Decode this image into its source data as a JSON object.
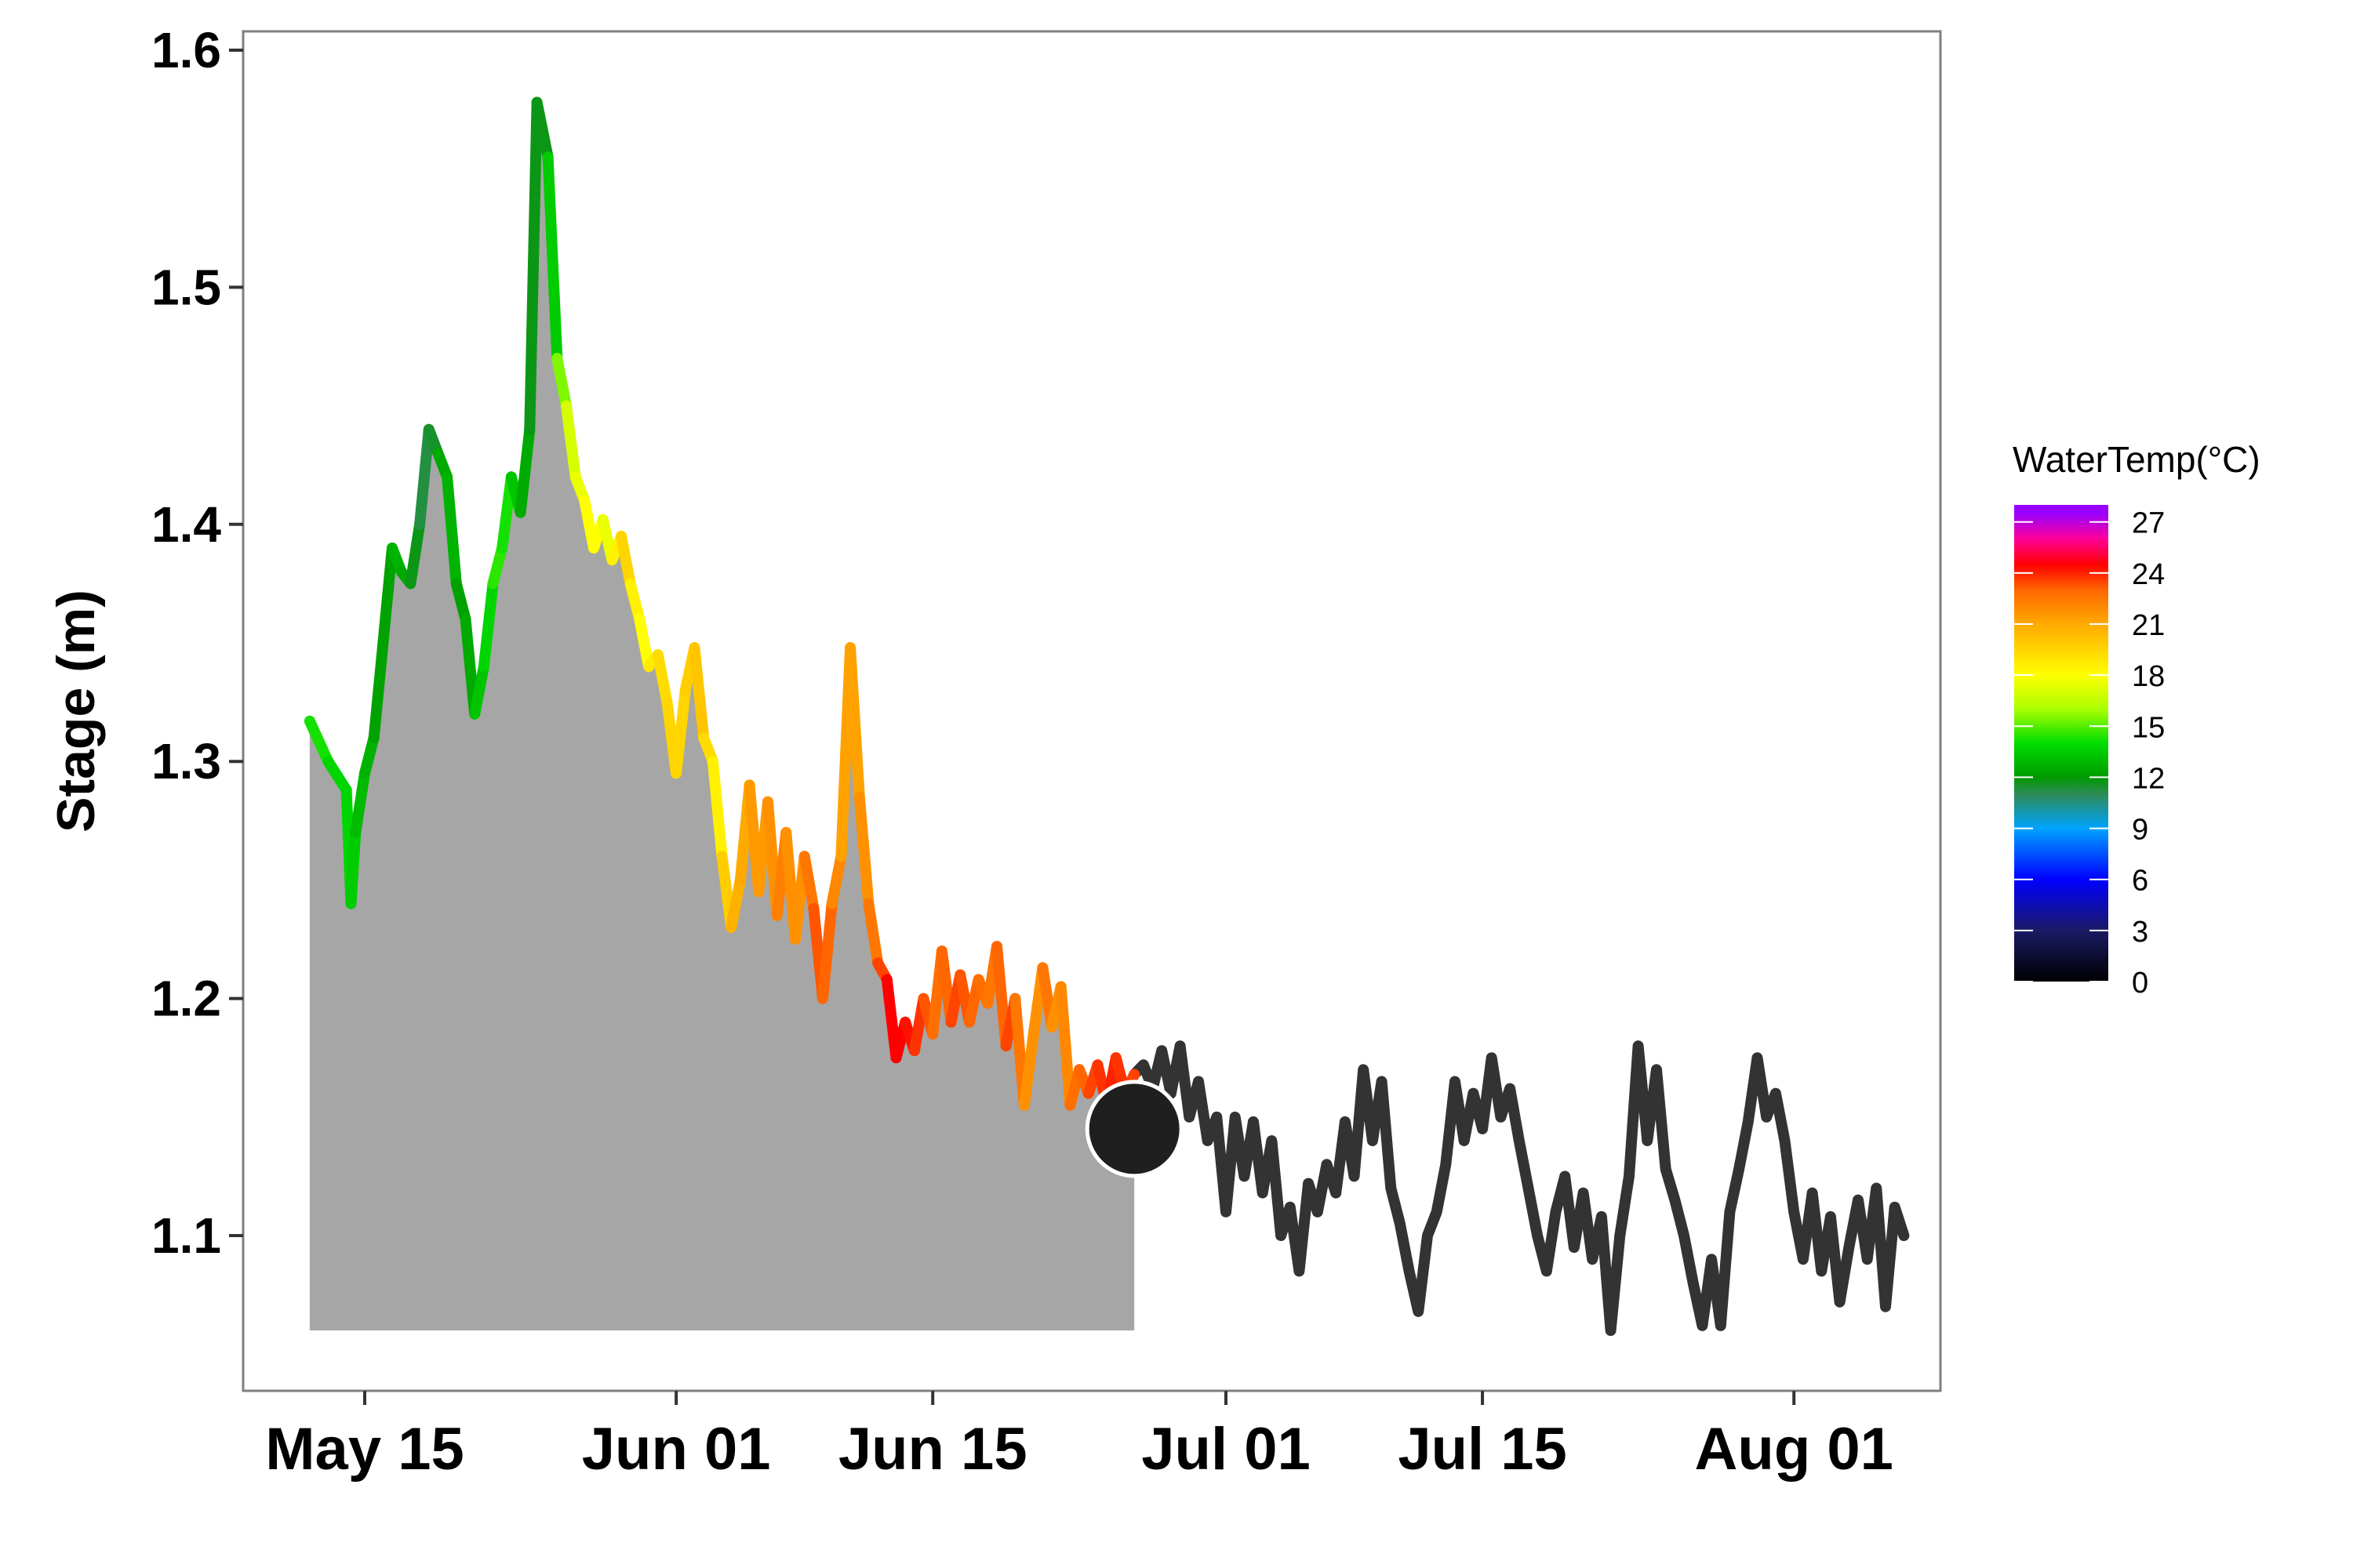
{
  "colors": {
    "area_fill": "#a6a6a6",
    "series_dark": "#333333",
    "marker_fill": "#1f1f1f",
    "marker_stroke": "#ffffff",
    "panel_border": "#7f7f7f",
    "gradient_stops": [
      {
        "t": 0,
        "color": "#000000"
      },
      {
        "t": 3,
        "color": "#1a1a66"
      },
      {
        "t": 6,
        "color": "#0000ff"
      },
      {
        "t": 9,
        "color": "#00a3ff"
      },
      {
        "t": 11,
        "color": "#2e8b57"
      },
      {
        "t": 12,
        "color": "#009900"
      },
      {
        "t": 14,
        "color": "#00dd00"
      },
      {
        "t": 16,
        "color": "#aaff00"
      },
      {
        "t": 18,
        "color": "#ffff00"
      },
      {
        "t": 21,
        "color": "#ffaa00"
      },
      {
        "t": 23,
        "color": "#ff6600"
      },
      {
        "t": 24.5,
        "color": "#ff0000"
      },
      {
        "t": 26,
        "color": "#ff0099"
      },
      {
        "t": 27.5,
        "color": "#9900ff"
      }
    ]
  },
  "chart_data": {
    "type": "line",
    "title": "",
    "xlabel": "",
    "ylabel": "Stage (m)",
    "ylim": [
      1.035,
      1.6
    ],
    "xlim": [
      "2015-05-05",
      "2015-08-07"
    ],
    "yticks": [
      1.1,
      1.2,
      1.3,
      1.4,
      1.5,
      1.6
    ],
    "ytick_labels": [
      "1.1",
      "1.2",
      "1.3",
      "1.4",
      "1.5",
      "1.6"
    ],
    "xticks": [
      "2015-05-15",
      "2015-06-01",
      "2015-06-15",
      "2015-07-01",
      "2015-07-15",
      "2015-08-01"
    ],
    "xtick_labels": [
      "May 15",
      "Jun 01",
      "Jun 15",
      "Jul 01",
      "Jul 15",
      "Aug 01"
    ],
    "grid": false,
    "legend": {
      "title": "WaterTemp(°C)",
      "placement": "right",
      "range": [
        0,
        28
      ],
      "ticks": [
        0,
        3,
        6,
        9,
        12,
        15,
        18,
        21,
        24,
        27
      ],
      "tick_labels": [
        "0",
        "3",
        "6",
        "9",
        "12",
        "15",
        "18",
        "21",
        "24",
        "27"
      ]
    },
    "shaded_area": {
      "x_start": "2015-05-12",
      "x_end": "2015-06-26",
      "y_bottom": 1.06
    },
    "marker": {
      "x": "2015-06-26",
      "y": 1.145
    },
    "series": [
      {
        "kind": "temperature_colored",
        "points": [
          [
            "2015-05-12",
            1.317,
            14.5
          ],
          [
            "2015-05-13",
            1.3,
            14.0
          ],
          [
            "2015-05-14",
            1.288,
            13.5
          ],
          [
            "2015-05-14.25",
            1.24,
            14.0
          ],
          [
            "2015-05-14.5",
            1.27,
            13.0
          ],
          [
            "2015-05-15",
            1.295,
            13.0
          ],
          [
            "2015-05-15.5",
            1.31,
            12.5
          ],
          [
            "2015-05-16",
            1.35,
            12.0
          ],
          [
            "2015-05-16.5",
            1.39,
            12.5
          ],
          [
            "2015-05-17",
            1.38,
            13.0
          ],
          [
            "2015-05-17.5",
            1.375,
            12.0
          ],
          [
            "2015-05-18",
            1.4,
            11.5
          ],
          [
            "2015-05-18.5",
            1.44,
            11.0
          ],
          [
            "2015-05-19",
            1.43,
            12.0
          ],
          [
            "2015-05-19.5",
            1.42,
            13.0
          ],
          [
            "2015-05-20",
            1.375,
            12.5
          ],
          [
            "2015-05-20.5",
            1.36,
            12.0
          ],
          [
            "2015-05-21",
            1.32,
            13.0
          ],
          [
            "2015-05-21.5",
            1.34,
            13.5
          ],
          [
            "2015-05-22",
            1.375,
            14.0
          ],
          [
            "2015-05-22.5",
            1.39,
            15.0
          ],
          [
            "2015-05-23",
            1.42,
            13.5
          ],
          [
            "2015-05-23.5",
            1.405,
            13.0
          ],
          [
            "2015-05-24",
            1.44,
            12.0
          ],
          [
            "2015-05-24.4",
            1.578,
            11.5
          ],
          [
            "2015-05-25",
            1.555,
            12.0
          ],
          [
            "2015-05-25.5",
            1.47,
            15.0
          ],
          [
            "2015-05-26",
            1.45,
            16.0
          ],
          [
            "2015-05-26.5",
            1.42,
            18.0
          ],
          [
            "2015-05-27",
            1.41,
            17.0
          ],
          [
            "2015-05-27.5",
            1.39,
            19.0
          ],
          [
            "2015-05-28",
            1.402,
            17.0
          ],
          [
            "2015-05-28.5",
            1.385,
            18.0
          ],
          [
            "2015-05-29",
            1.395,
            19.0
          ],
          [
            "2015-05-29.5",
            1.375,
            20.0
          ],
          [
            "2015-05-30",
            1.36,
            17.0
          ],
          [
            "2015-05-30.5",
            1.34,
            19.0
          ],
          [
            "2015-05-31",
            1.345,
            18.5
          ],
          [
            "2015-05-31.5",
            1.325,
            20.0
          ],
          [
            "2015-06-01",
            1.295,
            19.0
          ],
          [
            "2015-06-01.5",
            1.33,
            20.0
          ],
          [
            "2015-06-02",
            1.348,
            19.5
          ],
          [
            "2015-06-02.5",
            1.31,
            20.5
          ],
          [
            "2015-06-03",
            1.3,
            18.0
          ],
          [
            "2015-06-03.5",
            1.26,
            19.0
          ],
          [
            "2015-06-04",
            1.23,
            20.5
          ],
          [
            "2015-06-04.5",
            1.25,
            21.0
          ],
          [
            "2015-06-05",
            1.29,
            21.0
          ],
          [
            "2015-06-05.5",
            1.245,
            22.0
          ],
          [
            "2015-06-06",
            1.283,
            21.0
          ],
          [
            "2015-06-06.5",
            1.235,
            22.5
          ],
          [
            "2015-06-07",
            1.27,
            22.0
          ],
          [
            "2015-06-07.5",
            1.225,
            21.5
          ],
          [
            "2015-06-08",
            1.26,
            22.0
          ],
          [
            "2015-06-08.5",
            1.238,
            23.0
          ],
          [
            "2015-06-09",
            1.2,
            23.5
          ],
          [
            "2015-06-09.5",
            1.24,
            22.5
          ],
          [
            "2015-06-10",
            1.26,
            21.5
          ],
          [
            "2015-06-10.5",
            1.348,
            21.0
          ],
          [
            "2015-06-11",
            1.285,
            21.5
          ],
          [
            "2015-06-11.5",
            1.24,
            22.0
          ],
          [
            "2015-06-12",
            1.215,
            23.0
          ],
          [
            "2015-06-12.5",
            1.208,
            24.0
          ],
          [
            "2015-06-13",
            1.175,
            25.0
          ],
          [
            "2015-06-13.5",
            1.19,
            24.0
          ],
          [
            "2015-06-14",
            1.178,
            24.5
          ],
          [
            "2015-06-14.5",
            1.2,
            23.0
          ],
          [
            "2015-06-15",
            1.185,
            23.5
          ],
          [
            "2015-06-15.5",
            1.22,
            22.0
          ],
          [
            "2015-06-16",
            1.19,
            24.0
          ],
          [
            "2015-06-16.5",
            1.21,
            23.0
          ],
          [
            "2015-06-17",
            1.19,
            23.5
          ],
          [
            "2015-06-17.5",
            1.208,
            22.5
          ],
          [
            "2015-06-18",
            1.198,
            23.0
          ],
          [
            "2015-06-18.5",
            1.222,
            22.0
          ],
          [
            "2015-06-19",
            1.18,
            24.0
          ],
          [
            "2015-06-19.5",
            1.2,
            23.0
          ],
          [
            "2015-06-20",
            1.155,
            22.0
          ],
          [
            "2015-06-20.5",
            1.185,
            21.5
          ],
          [
            "2015-06-21",
            1.213,
            22.0
          ],
          [
            "2015-06-21.5",
            1.188,
            23.0
          ],
          [
            "2015-06-22",
            1.205,
            20.5
          ],
          [
            "2015-06-22.5",
            1.155,
            23.5
          ],
          [
            "2015-06-23",
            1.17,
            22.0
          ],
          [
            "2015-06-23.5",
            1.16,
            24.0
          ],
          [
            "2015-06-24",
            1.172,
            23.0
          ],
          [
            "2015-06-24.5",
            1.155,
            24.5
          ],
          [
            "2015-06-25",
            1.175,
            23.5
          ],
          [
            "2015-06-25.5",
            1.16,
            24.0
          ],
          [
            "2015-06-26",
            1.168,
            23.0
          ]
        ]
      },
      {
        "kind": "dark",
        "points": [
          [
            "2015-06-26",
            1.168
          ],
          [
            "2015-06-26.5",
            1.172
          ],
          [
            "2015-06-27",
            1.162
          ],
          [
            "2015-06-27.5",
            1.178
          ],
          [
            "2015-06-28",
            1.16
          ],
          [
            "2015-06-28.5",
            1.18
          ],
          [
            "2015-06-29",
            1.15
          ],
          [
            "2015-06-29.5",
            1.165
          ],
          [
            "2015-06-30",
            1.14
          ],
          [
            "2015-06-30.5",
            1.15
          ],
          [
            "2015-07-01",
            1.11
          ],
          [
            "2015-07-01.5",
            1.15
          ],
          [
            "2015-07-02",
            1.125
          ],
          [
            "2015-07-02.5",
            1.148
          ],
          [
            "2015-07-03",
            1.118
          ],
          [
            "2015-07-03.5",
            1.14
          ],
          [
            "2015-07-04",
            1.1
          ],
          [
            "2015-07-04.5",
            1.112
          ],
          [
            "2015-07-05",
            1.085
          ],
          [
            "2015-07-05.5",
            1.122
          ],
          [
            "2015-07-06",
            1.11
          ],
          [
            "2015-07-06.5",
            1.13
          ],
          [
            "2015-07-07",
            1.118
          ],
          [
            "2015-07-07.5",
            1.148
          ],
          [
            "2015-07-08",
            1.125
          ],
          [
            "2015-07-08.5",
            1.17
          ],
          [
            "2015-07-09",
            1.14
          ],
          [
            "2015-07-09.5",
            1.165
          ],
          [
            "2015-07-10",
            1.12
          ],
          [
            "2015-07-10.5",
            1.105
          ],
          [
            "2015-07-11",
            1.085
          ],
          [
            "2015-07-11.5",
            1.068
          ],
          [
            "2015-07-12",
            1.1
          ],
          [
            "2015-07-12.5",
            1.11
          ],
          [
            "2015-07-13",
            1.13
          ],
          [
            "2015-07-13.5",
            1.165
          ],
          [
            "2015-07-14",
            1.14
          ],
          [
            "2015-07-14.5",
            1.16
          ],
          [
            "2015-07-15",
            1.145
          ],
          [
            "2015-07-15.5",
            1.175
          ],
          [
            "2015-07-16",
            1.15
          ],
          [
            "2015-07-16.5",
            1.162
          ],
          [
            "2015-07-17",
            1.14
          ],
          [
            "2015-07-17.5",
            1.12
          ],
          [
            "2015-07-18",
            1.1
          ],
          [
            "2015-07-18.5",
            1.085
          ],
          [
            "2015-07-19",
            1.11
          ],
          [
            "2015-07-19.5",
            1.125
          ],
          [
            "2015-07-20",
            1.095
          ],
          [
            "2015-07-20.5",
            1.118
          ],
          [
            "2015-07-21",
            1.09
          ],
          [
            "2015-07-21.5",
            1.108
          ],
          [
            "2015-07-22",
            1.06
          ],
          [
            "2015-07-22.5",
            1.1
          ],
          [
            "2015-07-23",
            1.125
          ],
          [
            "2015-07-23.5",
            1.18
          ],
          [
            "2015-07-24",
            1.14
          ],
          [
            "2015-07-24.5",
            1.17
          ],
          [
            "2015-07-25",
            1.128
          ],
          [
            "2015-07-25.5",
            1.115
          ],
          [
            "2015-07-26",
            1.1
          ],
          [
            "2015-07-26.5",
            1.08
          ],
          [
            "2015-07-27",
            1.062
          ],
          [
            "2015-07-27.5",
            1.09
          ],
          [
            "2015-07-28",
            1.062
          ],
          [
            "2015-07-28.5",
            1.11
          ],
          [
            "2015-07-29",
            1.128
          ],
          [
            "2015-07-29.5",
            1.148
          ],
          [
            "2015-07-30",
            1.175
          ],
          [
            "2015-07-30.5",
            1.15
          ],
          [
            "2015-07-31",
            1.16
          ],
          [
            "2015-07-31.5",
            1.14
          ],
          [
            "2015-08-01",
            1.11
          ],
          [
            "2015-08-01.5",
            1.09
          ],
          [
            "2015-08-02",
            1.118
          ],
          [
            "2015-08-02.5",
            1.085
          ],
          [
            "2015-08-03",
            1.108
          ],
          [
            "2015-08-03.5",
            1.072
          ],
          [
            "2015-08-04",
            1.095
          ],
          [
            "2015-08-04.5",
            1.115
          ],
          [
            "2015-08-05",
            1.09
          ],
          [
            "2015-08-05.5",
            1.12
          ],
          [
            "2015-08-06",
            1.07
          ],
          [
            "2015-08-06.5",
            1.112
          ],
          [
            "2015-08-07",
            1.1
          ]
        ]
      }
    ]
  }
}
